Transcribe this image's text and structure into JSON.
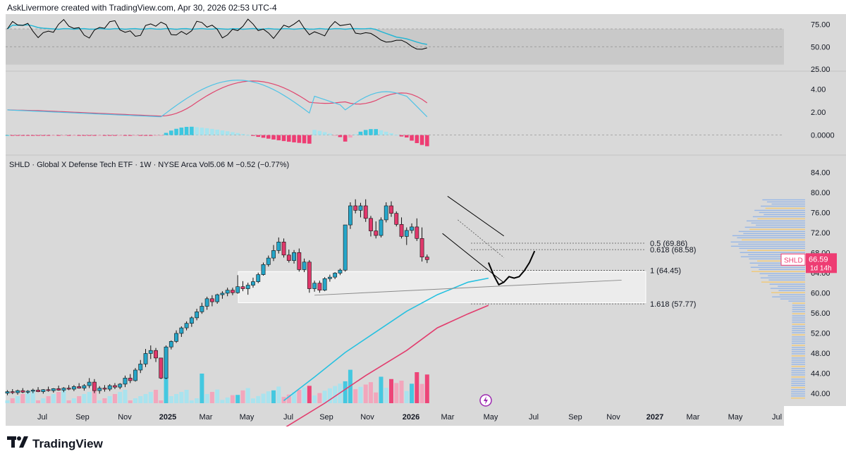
{
  "header": {
    "attribution": "AskLivermore created with TradingView.com, Apr 30, 2026 02:53 UTC-4"
  },
  "footer": {
    "brand": "TradingView"
  },
  "colors": {
    "background": "#d9d9d9",
    "rsi_line": "#000000",
    "rsi_ma": "#26b6d4",
    "macd_line": "#4fc3e6",
    "signal_line": "#e0476f",
    "hist_up": "#3cc7e0",
    "hist_up_fade": "#a6e4ef",
    "hist_down": "#ee3d73",
    "hist_down_fade": "#f3a3bb",
    "candle_up": "#26a6c9",
    "candle_down": "#e0386b",
    "ma_fast": "#26c1e0",
    "ma_slow": "#e23c6d",
    "price_badge": "#ee3d73"
  },
  "rsi_pane": {
    "ticks": [
      "75.00",
      "50.00",
      "25.00"
    ]
  },
  "macd_pane": {
    "ticks": [
      "4.00",
      "2.00",
      "0.0000"
    ]
  },
  "price_pane": {
    "legend": "SHLD · Global X Defense Tech ETF · 1W · NYSE Arca  Vol5.06 M  −0.52 (−0.77%)",
    "ticks": [
      "84.00",
      "80.00",
      "76.00",
      "72.00",
      "68.00",
      "64.00",
      "60.00",
      "56.00",
      "52.00",
      "48.00",
      "44.00",
      "40.00"
    ],
    "badge_symbol": "SHLD",
    "badge_price": "66.59",
    "badge_countdown": "1d 14h"
  },
  "fib_labels": [
    "0.5 (69.86)",
    "0.618 (68.58)",
    "1 (64.45)",
    "1.618 (57.77)"
  ],
  "x_axis": [
    "Jul",
    "Sep",
    "Nov",
    "2025",
    "Mar",
    "May",
    "Jul",
    "Sep",
    "Nov",
    "2026",
    "Mar",
    "May",
    "Jul",
    "Sep",
    "Nov",
    "2027",
    "Mar",
    "May",
    "Jul"
  ],
  "chart_data": {
    "type": "candlestick",
    "title": "SHLD · Global X Defense Tech ETF · 1W · NYSE Arca",
    "volume": "5.06 M",
    "change": "−0.52 (−0.77%)",
    "last_price": 66.59,
    "ylim": [
      38,
      86
    ],
    "fibonacci": [
      {
        "level": 0.5,
        "price": 69.86
      },
      {
        "level": 0.618,
        "price": 68.58
      },
      {
        "level": 1,
        "price": 64.45
      },
      {
        "level": 1.618,
        "price": 57.77
      }
    ],
    "support_zone": [
      58.0,
      64.2
    ],
    "candles_ohlc": [
      [
        40.0,
        40.6,
        39.6,
        40.3
      ],
      [
        40.3,
        40.8,
        39.8,
        40.1
      ],
      [
        40.1,
        40.7,
        39.7,
        40.5
      ],
      [
        40.5,
        41.0,
        40.0,
        40.2
      ],
      [
        40.2,
        40.6,
        39.9,
        40.4
      ],
      [
        40.4,
        40.9,
        40.0,
        40.6
      ],
      [
        40.6,
        41.2,
        40.2,
        40.3
      ],
      [
        40.3,
        40.8,
        39.9,
        40.7
      ],
      [
        40.7,
        41.3,
        40.3,
        40.5
      ],
      [
        40.5,
        41.0,
        40.1,
        40.9
      ],
      [
        40.9,
        41.5,
        40.5,
        40.6
      ],
      [
        40.6,
        41.2,
        40.2,
        41.0
      ],
      [
        41.0,
        41.6,
        40.6,
        40.8
      ],
      [
        40.8,
        41.6,
        40.4,
        41.3
      ],
      [
        41.3,
        42.0,
        40.9,
        41.0
      ],
      [
        41.0,
        41.8,
        40.5,
        41.5
      ],
      [
        41.5,
        43.0,
        41.0,
        42.2
      ],
      [
        42.2,
        42.8,
        40.0,
        40.5
      ],
      [
        40.5,
        41.4,
        39.9,
        41.0
      ],
      [
        41.0,
        41.6,
        40.3,
        40.8
      ],
      [
        40.8,
        41.8,
        40.4,
        41.5
      ],
      [
        41.5,
        42.0,
        40.8,
        41.2
      ],
      [
        41.2,
        42.0,
        40.8,
        41.8
      ],
      [
        41.8,
        43.5,
        41.2,
        43.0
      ],
      [
        43.0,
        43.8,
        42.0,
        42.5
      ],
      [
        42.5,
        45.0,
        42.3,
        44.6
      ],
      [
        44.6,
        46.6,
        44.0,
        45.8
      ],
      [
        45.8,
        48.8,
        45.2,
        47.9
      ],
      [
        47.9,
        49.5,
        46.8,
        48.5
      ],
      [
        48.5,
        49.0,
        46.2,
        47.0
      ],
      [
        47.0,
        43.2,
        42.8,
        43.0
      ],
      [
        43.0,
        49.5,
        42.8,
        49.2
      ],
      [
        49.2,
        50.5,
        48.7,
        50.3
      ],
      [
        50.3,
        52.5,
        50.0,
        51.9
      ],
      [
        51.9,
        53.3,
        51.2,
        53.0
      ],
      [
        53.0,
        54.3,
        52.5,
        53.9
      ],
      [
        53.9,
        55.3,
        53.2,
        55.0
      ],
      [
        55.0,
        56.8,
        54.5,
        56.2
      ],
      [
        56.2,
        58.0,
        55.8,
        57.3
      ],
      [
        57.3,
        59.2,
        56.6,
        58.8
      ],
      [
        58.8,
        59.5,
        57.3,
        58.2
      ],
      [
        58.2,
        59.8,
        57.8,
        59.6
      ],
      [
        59.6,
        60.3,
        58.8,
        59.9
      ],
      [
        59.9,
        61.0,
        59.3,
        60.5
      ],
      [
        60.5,
        61.0,
        59.5,
        60.0
      ],
      [
        60.0,
        63.5,
        59.8,
        61.2
      ],
      [
        61.2,
        62.3,
        60.3,
        60.8
      ],
      [
        60.8,
        62.0,
        59.6,
        61.5
      ],
      [
        61.5,
        63.0,
        61.0,
        62.2
      ],
      [
        62.2,
        64.0,
        61.9,
        63.6
      ],
      [
        63.6,
        66.0,
        63.4,
        65.6
      ],
      [
        65.6,
        67.4,
        65.2,
        66.9
      ],
      [
        66.9,
        69.5,
        66.3,
        68.4
      ],
      [
        68.4,
        71.0,
        67.8,
        70.1
      ],
      [
        70.1,
        70.8,
        67.0,
        67.5
      ],
      [
        67.5,
        68.6,
        66.0,
        66.4
      ],
      [
        66.4,
        68.5,
        65.8,
        68.0
      ],
      [
        68.0,
        68.8,
        64.2,
        64.6
      ],
      [
        64.6,
        66.8,
        64.1,
        66.1
      ],
      [
        66.1,
        66.5,
        60.0,
        60.8
      ],
      [
        60.8,
        62.4,
        60.2,
        61.9
      ],
      [
        61.9,
        62.4,
        60.0,
        60.5
      ],
      [
        60.5,
        63.1,
        60.3,
        62.8
      ],
      [
        62.8,
        63.6,
        62.2,
        63.1
      ],
      [
        63.1,
        64.1,
        62.7,
        63.9
      ],
      [
        63.9,
        64.8,
        63.5,
        64.5
      ],
      [
        64.5,
        70.6,
        64.2,
        73.5
      ],
      [
        73.5,
        78.0,
        72.7,
        77.3
      ],
      [
        77.3,
        78.6,
        75.8,
        76.4
      ],
      [
        76.4,
        77.9,
        75.0,
        77.3
      ],
      [
        77.3,
        78.6,
        74.1,
        74.8
      ],
      [
        74.8,
        75.3,
        71.2,
        72.3
      ],
      [
        72.3,
        74.2,
        70.8,
        71.4
      ],
      [
        71.4,
        75.0,
        71.0,
        74.5
      ],
      [
        74.5,
        78.0,
        74.0,
        77.3
      ],
      [
        77.3,
        78.2,
        75.1,
        75.8
      ],
      [
        75.8,
        76.2,
        73.2,
        73.6
      ],
      [
        73.6,
        75.0,
        70.8,
        71.2
      ],
      [
        71.2,
        73.0,
        69.5,
        72.4
      ],
      [
        72.4,
        73.8,
        71.8,
        73.1
      ],
      [
        73.1,
        74.8,
        70.3,
        70.8
      ],
      [
        70.8,
        73.0,
        66.2,
        67.1
      ],
      [
        67.1,
        67.6,
        65.9,
        66.59
      ]
    ],
    "sma_fast": {
      "name": "MA",
      "points_time_value": [
        [
          54,
          38.5
        ],
        [
          60,
          43.2
        ],
        [
          66,
          48.1
        ],
        [
          72,
          52.2
        ],
        [
          78,
          56.3
        ],
        [
          84,
          59.6
        ],
        [
          90,
          62.1
        ],
        [
          94,
          62.9
        ]
      ]
    },
    "sma_slow": {
      "name": "MA",
      "points_time_value": [
        [
          54,
          33.0
        ],
        [
          62,
          38.0
        ],
        [
          70,
          43.5
        ],
        [
          78,
          48.5
        ],
        [
          84,
          53.0
        ],
        [
          90,
          55.8
        ],
        [
          94,
          57.5
        ]
      ]
    },
    "projection_path": [
      [
        94,
        66.0
      ],
      [
        95,
        63.5
      ],
      [
        96,
        61.6
      ],
      [
        97,
        62.1
      ],
      [
        98,
        63.2
      ],
      [
        99,
        62.9
      ],
      [
        100,
        63.2
      ],
      [
        101,
        64.4
      ],
      [
        102,
        66.0
      ],
      [
        103,
        68.3
      ]
    ],
    "channel_upper": [
      [
        86,
        79.2
      ],
      [
        97,
        71.3
      ]
    ],
    "channel_lower": [
      [
        85,
        71.8
      ],
      [
        97,
        62.0
      ]
    ],
    "trendline": [
      [
        60,
        59.5
      ],
      [
        120,
        62.5
      ]
    ],
    "rsi_pane_ylim": [
      25,
      85
    ],
    "macd_ylim": [
      -1.5,
      5.4
    ]
  }
}
